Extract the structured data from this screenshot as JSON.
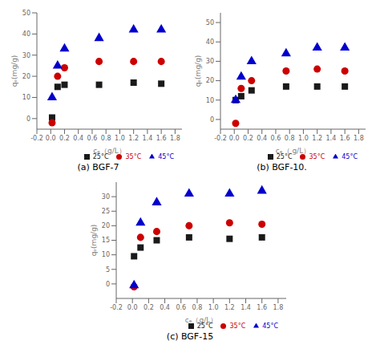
{
  "chart_data": [
    {
      "type": "scatter",
      "title": "(a) BGF-7",
      "xlabel": "cₑ（g/L）",
      "ylabel": "qₑ(mg/g)",
      "x": [
        0.02,
        0.1,
        0.2,
        0.7,
        1.2,
        1.6
      ],
      "series": [
        {
          "name": "25°C",
          "color": "#1a1a1a",
          "marker": "square",
          "values": [
            0.5,
            15,
            16,
            16,
            17,
            16.5
          ]
        },
        {
          "name": "35°C",
          "color": "#cc0000",
          "marker": "circle",
          "values": [
            -2,
            20,
            24,
            27,
            27,
            27
          ]
        },
        {
          "name": "45°C",
          "color": "#0000cc",
          "marker": "triangle",
          "values": [
            10,
            25,
            33,
            38,
            42,
            42
          ]
        }
      ],
      "xlim": [
        -0.2,
        1.9
      ],
      "ylim": [
        -5,
        50
      ],
      "xticks": [
        -0.2,
        {
          "value": 0.0,
          "label": "0.0"
        },
        0.2,
        0.4,
        0.6,
        0.8,
        {
          "value": 1.0,
          "label": "1.0"
        },
        1.2,
        1.4,
        1.6,
        1.8
      ],
      "yticks": [
        0,
        10,
        20,
        30,
        40,
        50
      ],
      "grid": false,
      "legend": "lower right"
    },
    {
      "type": "scatter",
      "title": "(b) BGF-10.",
      "xlabel": "cₑ（ g/L）",
      "ylabel": "qₑ(mg/g)",
      "x": [
        0.02,
        0.1,
        0.25,
        0.75,
        1.2,
        1.6
      ],
      "series": [
        {
          "name": "25°C",
          "color": "#1a1a1a",
          "marker": "square",
          "values": [
            10,
            12,
            15,
            17,
            17,
            17
          ]
        },
        {
          "name": "35°C",
          "color": "#cc0000",
          "marker": "circle",
          "values": [
            -2,
            16,
            20,
            25,
            26,
            25
          ]
        },
        {
          "name": "45°C",
          "color": "#0000cc",
          "marker": "triangle",
          "values": [
            10,
            22,
            30,
            34,
            37,
            37
          ]
        }
      ],
      "xlim": [
        -0.2,
        1.9
      ],
      "ylim": [
        -5,
        55
      ],
      "xticks": [
        -0.2,
        {
          "value": 0.0,
          "label": "0.0"
        },
        0.2,
        0.4,
        0.6,
        0.8,
        {
          "value": 1.0,
          "label": "1.0"
        },
        1.2,
        1.4,
        1.6,
        1.8
      ],
      "yticks": [
        0,
        10,
        20,
        30,
        40,
        50
      ],
      "grid": false,
      "legend": "lower right"
    },
    {
      "type": "scatter",
      "title": "(c) BGF-15",
      "xlabel": "cₑ（g/L）",
      "ylabel": "qₑ(mg/g)",
      "x": [
        0.02,
        0.1,
        0.3,
        0.7,
        1.2,
        1.6
      ],
      "series": [
        {
          "name": "25°C",
          "color": "#1a1a1a",
          "marker": "square",
          "values": [
            9.5,
            12.5,
            15,
            16,
            15.5,
            16
          ]
        },
        {
          "name": "35°C",
          "color": "#cc0000",
          "marker": "circle",
          "values": [
            -1,
            16,
            18,
            20,
            21,
            20.5
          ]
        },
        {
          "name": "45°C",
          "color": "#0000cc",
          "marker": "triangle",
          "values": [
            -0.5,
            21,
            28,
            31,
            31,
            32
          ]
        }
      ],
      "xlim": [
        -0.2,
        1.9
      ],
      "ylim": [
        -5,
        35
      ],
      "xticks": [
        -0.2,
        {
          "value": 0.0,
          "label": "0.0"
        },
        0.2,
        0.4,
        0.6,
        0.8,
        {
          "value": 1.0,
          "label": "1.0"
        },
        1.2,
        1.4,
        1.6,
        1.8
      ],
      "yticks": [
        0,
        5,
        10,
        15,
        20,
        25,
        30
      ],
      "grid": false,
      "legend": "lower right"
    }
  ]
}
